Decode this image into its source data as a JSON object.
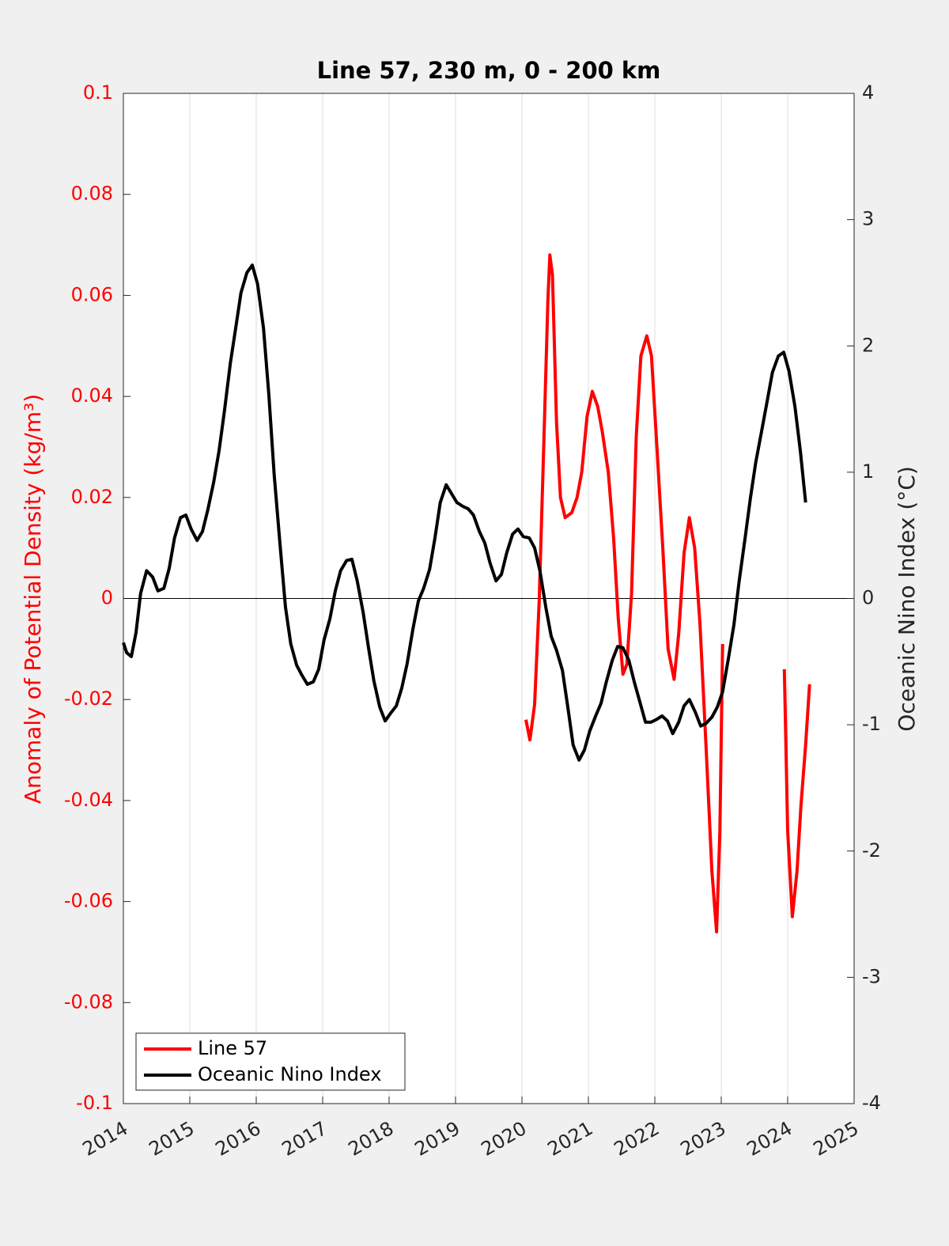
{
  "chart_data": {
    "type": "line",
    "title": "Line 57, 230 m, 0 - 200 km",
    "ylabel": "Anomaly of Potential Density (kg/m³)",
    "y2label": "Oceanic Nino Index (°C)",
    "xlim": [
      2014,
      2025
    ],
    "xticks": [
      2014,
      2015,
      2016,
      2017,
      2018,
      2019,
      2020,
      2021,
      2022,
      2023,
      2024,
      2025
    ],
    "ylim": [
      -0.1,
      0.1
    ],
    "yticks": [
      -0.1,
      -0.08,
      -0.06,
      -0.04,
      -0.02,
      0,
      0.02,
      0.04,
      0.06,
      0.08,
      0.1
    ],
    "y2lim": [
      -4,
      4
    ],
    "y2ticks": [
      -4,
      -3,
      -2,
      -1,
      0,
      1,
      2,
      3,
      4
    ],
    "xgrid": true,
    "legend": "lower left",
    "series": [
      {
        "name": "Line 57",
        "color": "#ff0000",
        "axis": "y",
        "x": [
          2020.06,
          2020.12,
          2020.19,
          2020.26,
          2020.33,
          2020.39,
          2020.42,
          2020.46,
          2020.52,
          2020.58,
          2020.65,
          2020.75,
          2020.83,
          2020.9,
          2020.98,
          2021.06,
          2021.14,
          2021.21,
          2021.3,
          2021.38,
          2021.45,
          2021.52,
          2021.58,
          2021.65,
          2021.72,
          2021.79,
          2021.88,
          2021.95,
          2022.04,
          2022.12,
          2022.2,
          2022.29,
          2022.36,
          2022.44,
          2022.52,
          2022.6,
          2022.68,
          2022.77,
          2022.86,
          2022.93,
          2022.98,
          2023.02,
          2023.5,
          2023.95,
          2024.0,
          2024.07,
          2024.14,
          2024.2,
          2024.27,
          2024.33
        ],
        "values": [
          -0.024,
          -0.028,
          -0.021,
          -0.0005,
          0.031,
          0.059,
          0.068,
          0.064,
          0.035,
          0.02,
          0.016,
          0.017,
          0.02,
          0.025,
          0.036,
          0.041,
          0.038,
          0.033,
          0.025,
          0.012,
          -0.004,
          -0.015,
          -0.013,
          0.001,
          0.032,
          0.048,
          0.052,
          0.048,
          0.028,
          0.01,
          -0.01,
          -0.016,
          -0.007,
          0.009,
          0.016,
          0.01,
          -0.005,
          -0.029,
          -0.054,
          -0.066,
          -0.046,
          -0.009,
          null,
          -0.014,
          -0.046,
          -0.063,
          -0.054,
          -0.041,
          -0.029,
          -0.017
        ]
      },
      {
        "name": "Oceanic Nino Index",
        "color": "#000000",
        "axis": "y2",
        "x": [
          2014.0,
          2014.05,
          2014.12,
          2014.19,
          2014.26,
          2014.35,
          2014.44,
          2014.52,
          2014.61,
          2014.69,
          2014.77,
          2014.86,
          2014.94,
          2015.02,
          2015.11,
          2015.19,
          2015.27,
          2015.36,
          2015.44,
          2015.52,
          2015.61,
          2015.69,
          2015.77,
          2015.86,
          2015.94,
          2016.02,
          2016.11,
          2016.19,
          2016.27,
          2016.36,
          2016.44,
          2016.52,
          2016.61,
          2016.69,
          2016.77,
          2016.86,
          2016.94,
          2017.02,
          2017.11,
          2017.19,
          2017.27,
          2017.36,
          2017.44,
          2017.52,
          2017.61,
          2017.69,
          2017.77,
          2017.86,
          2017.94,
          2018.02,
          2018.11,
          2018.19,
          2018.27,
          2018.36,
          2018.44,
          2018.52,
          2018.61,
          2018.69,
          2018.77,
          2018.86,
          2018.94,
          2019.02,
          2019.11,
          2019.19,
          2019.27,
          2019.36,
          2019.44,
          2019.52,
          2019.61,
          2019.69,
          2019.77,
          2019.86,
          2019.94,
          2020.02,
          2020.11,
          2020.19,
          2020.27,
          2020.36,
          2020.44,
          2020.52,
          2020.61,
          2020.69,
          2020.77,
          2020.86,
          2020.94,
          2021.02,
          2021.11,
          2021.19,
          2021.27,
          2021.36,
          2021.44,
          2021.52,
          2021.61,
          2021.69,
          2021.77,
          2021.86,
          2021.94,
          2022.02,
          2022.11,
          2022.19,
          2022.27,
          2022.36,
          2022.44,
          2022.52,
          2022.61,
          2022.69,
          2022.77,
          2022.86,
          2022.94,
          2023.02,
          2023.11,
          2023.19,
          2023.27,
          2023.36,
          2023.44,
          2023.52,
          2023.61,
          2023.69,
          2023.77,
          2023.86,
          2023.94,
          2024.02,
          2024.11,
          2024.19,
          2024.27
        ],
        "values": [
          -0.35,
          -0.43,
          -0.46,
          -0.27,
          0.04,
          0.22,
          0.17,
          0.06,
          0.08,
          0.24,
          0.48,
          0.64,
          0.66,
          0.55,
          0.46,
          0.53,
          0.7,
          0.92,
          1.17,
          1.48,
          1.86,
          2.14,
          2.42,
          2.58,
          2.64,
          2.49,
          2.14,
          1.61,
          0.98,
          0.42,
          -0.07,
          -0.36,
          -0.53,
          -0.61,
          -0.68,
          -0.66,
          -0.56,
          -0.33,
          -0.16,
          0.06,
          0.22,
          0.3,
          0.31,
          0.14,
          -0.11,
          -0.39,
          -0.65,
          -0.86,
          -0.97,
          -0.91,
          -0.85,
          -0.71,
          -0.52,
          -0.24,
          -0.02,
          0.08,
          0.23,
          0.48,
          0.76,
          0.9,
          0.83,
          0.76,
          0.73,
          0.71,
          0.66,
          0.53,
          0.44,
          0.28,
          0.14,
          0.19,
          0.36,
          0.51,
          0.55,
          0.49,
          0.48,
          0.4,
          0.22,
          -0.07,
          -0.3,
          -0.41,
          -0.57,
          -0.86,
          -1.16,
          -1.28,
          -1.2,
          -1.05,
          -0.93,
          -0.83,
          -0.66,
          -0.49,
          -0.38,
          -0.39,
          -0.49,
          -0.66,
          -0.81,
          -0.98,
          -0.98,
          -0.96,
          -0.93,
          -0.97,
          -1.07,
          -0.98,
          -0.85,
          -0.8,
          -0.9,
          -1.01,
          -0.99,
          -0.94,
          -0.86,
          -0.74,
          -0.47,
          -0.21,
          0.14,
          0.48,
          0.8,
          1.08,
          1.33,
          1.56,
          1.79,
          1.92,
          1.95,
          1.8,
          1.52,
          1.17,
          0.76
        ]
      }
    ]
  }
}
